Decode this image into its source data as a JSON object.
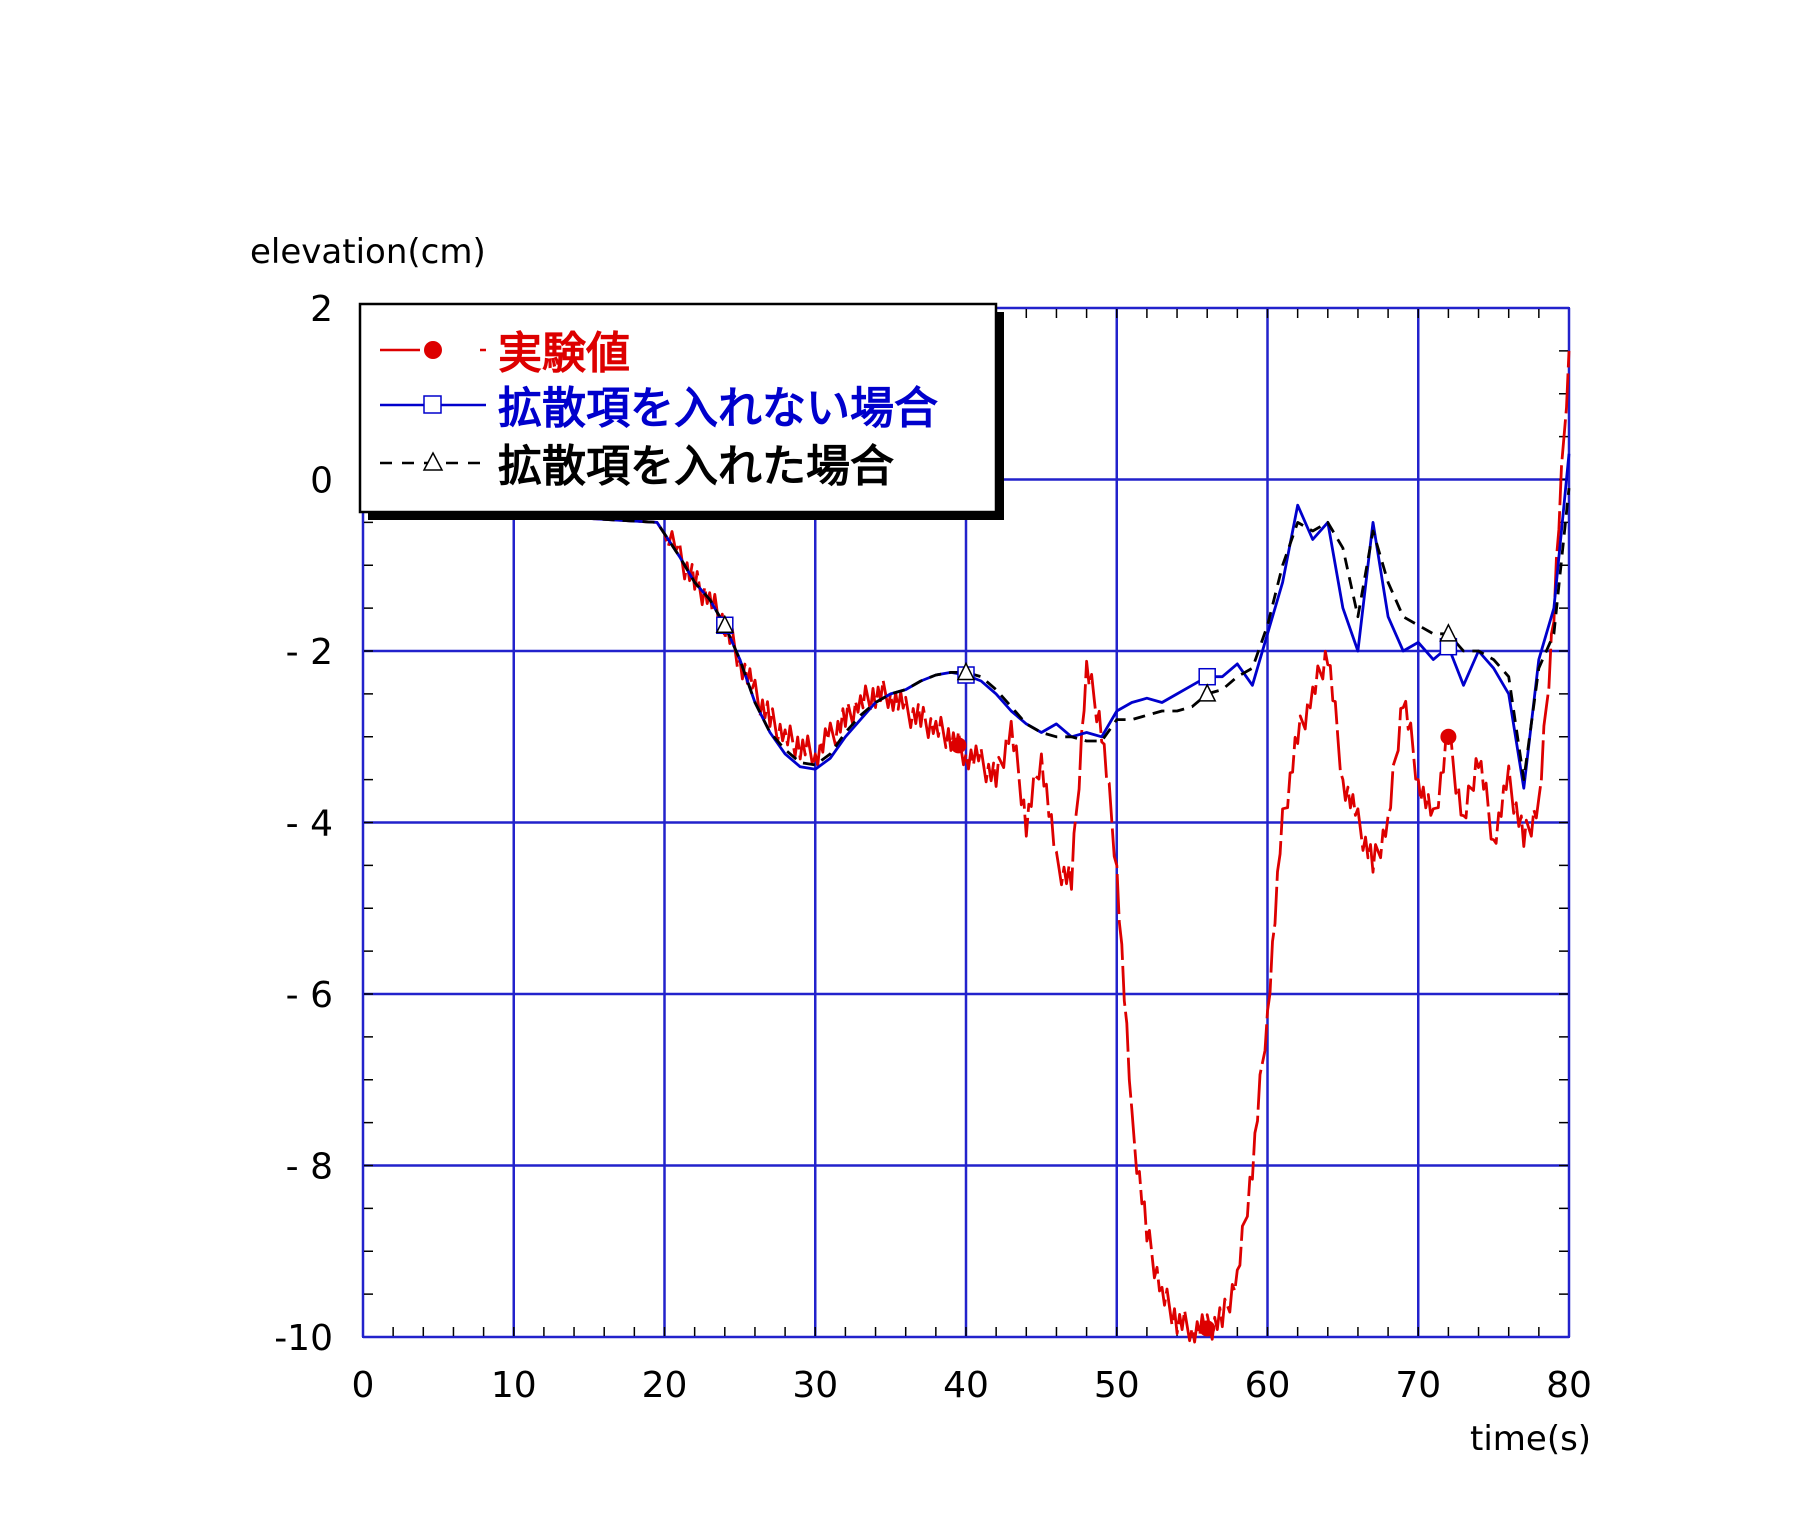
{
  "chart_data": {
    "type": "line",
    "xlabel": "time(s)",
    "ylabel": "elevation(cm)",
    "xlim": [
      0,
      80
    ],
    "ylim": [
      -10,
      2
    ],
    "x_ticks": [
      "0",
      "10",
      "20",
      "30",
      "40",
      "50",
      "60",
      "70",
      "80"
    ],
    "y_ticks": [
      "2",
      "0",
      "- 2",
      "- 4",
      "- 6",
      "- 8",
      "-10"
    ],
    "grid": true,
    "legend_position": "top-left",
    "colors": {
      "grid": "#2222cc",
      "experiment": "#dd0000",
      "no_diffusion": "#0000cc",
      "with_diffusion": "#000000"
    },
    "series": [
      {
        "name": "実験値",
        "style": "dashed-jagged",
        "marker": "filled-circle",
        "marker_x": [
          24,
          39.5,
          56,
          72
        ],
        "x": [
          0,
          19.5,
          21,
          22,
          23,
          24,
          25,
          26,
          27,
          28,
          29,
          30,
          31,
          32,
          33,
          34,
          35,
          36,
          37,
          38,
          39,
          40,
          41,
          42,
          43,
          44,
          45,
          46,
          47,
          48,
          49,
          50,
          51,
          52,
          53,
          54,
          55,
          56,
          57,
          58,
          59,
          60,
          61,
          62,
          63,
          64,
          65,
          66,
          67,
          68,
          69,
          70,
          71,
          72,
          73,
          74,
          75,
          76,
          77,
          78,
          79,
          80
        ],
        "y": [
          -0.3,
          -0.5,
          -0.9,
          -1.2,
          -1.4,
          -1.7,
          -2.1,
          -2.5,
          -2.8,
          -3.0,
          -3.1,
          -3.2,
          -3.0,
          -2.8,
          -2.6,
          -2.5,
          -2.5,
          -2.7,
          -2.8,
          -2.9,
          -3.0,
          -3.2,
          -3.3,
          -3.5,
          -2.9,
          -4.0,
          -3.2,
          -4.5,
          -4.7,
          -2.2,
          -2.9,
          -4.5,
          -7.5,
          -8.8,
          -9.5,
          -9.8,
          -9.9,
          -9.9,
          -9.8,
          -9.3,
          -8.0,
          -6.2,
          -4.0,
          -3.0,
          -2.5,
          -2.0,
          -3.5,
          -4.0,
          -4.5,
          -4.0,
          -2.5,
          -3.5,
          -4.0,
          -3.0,
          -4.0,
          -3.2,
          -4.2,
          -3.5,
          -4.2,
          -3.8,
          -1.5,
          1.5
        ]
      },
      {
        "name": "拡散項を入れない場合",
        "style": "solid",
        "marker": "open-square",
        "marker_x": [
          24,
          40,
          56,
          72
        ],
        "x": [
          0,
          19.5,
          21,
          22,
          23,
          24,
          25,
          26,
          27,
          28,
          29,
          30,
          31,
          32,
          33,
          34,
          35,
          36,
          37,
          38,
          39,
          40,
          41,
          42,
          43,
          44,
          45,
          46,
          47,
          48,
          49,
          50,
          51,
          52,
          53,
          54,
          55,
          56,
          57,
          58,
          59,
          60,
          61,
          62,
          63,
          64,
          65,
          66,
          67,
          68,
          69,
          70,
          71,
          72,
          73,
          74,
          75,
          76,
          77,
          78,
          79,
          80
        ],
        "y": [
          -0.3,
          -0.5,
          -0.9,
          -1.2,
          -1.4,
          -1.7,
          -2.1,
          -2.6,
          -2.95,
          -3.2,
          -3.35,
          -3.38,
          -3.25,
          -3.0,
          -2.8,
          -2.6,
          -2.5,
          -2.45,
          -2.35,
          -2.28,
          -2.25,
          -2.28,
          -2.35,
          -2.5,
          -2.7,
          -2.85,
          -2.95,
          -2.85,
          -3.0,
          -2.95,
          -3.0,
          -2.7,
          -2.6,
          -2.55,
          -2.6,
          -2.5,
          -2.4,
          -2.3,
          -2.3,
          -2.15,
          -2.4,
          -1.8,
          -1.2,
          -0.3,
          -0.7,
          -0.5,
          -1.5,
          -2.0,
          -0.5,
          -1.6,
          -2.0,
          -1.9,
          -2.1,
          -1.95,
          -2.4,
          -2.0,
          -2.2,
          -2.5,
          -3.6,
          -2.1,
          -1.5,
          0.3
        ]
      },
      {
        "name": "拡散項を入れた場合",
        "style": "dashed",
        "marker": "open-triangle",
        "marker_x": [
          24,
          40,
          56,
          72
        ],
        "x": [
          0,
          19.5,
          21,
          22,
          23,
          24,
          25,
          26,
          27,
          28,
          29,
          30,
          31,
          32,
          33,
          34,
          35,
          36,
          37,
          38,
          39,
          40,
          41,
          42,
          43,
          44,
          45,
          46,
          47,
          48,
          49,
          50,
          51,
          52,
          53,
          54,
          55,
          56,
          57,
          58,
          59,
          60,
          61,
          62,
          63,
          64,
          65,
          66,
          67,
          68,
          69,
          70,
          71,
          72,
          73,
          74,
          75,
          76,
          77,
          78,
          79,
          80
        ],
        "y": [
          -0.3,
          -0.5,
          -0.9,
          -1.2,
          -1.4,
          -1.7,
          -2.1,
          -2.6,
          -2.95,
          -3.15,
          -3.3,
          -3.33,
          -3.2,
          -2.95,
          -2.75,
          -2.6,
          -2.5,
          -2.45,
          -2.35,
          -2.28,
          -2.25,
          -2.25,
          -2.3,
          -2.45,
          -2.65,
          -2.85,
          -2.95,
          -3.0,
          -3.0,
          -3.05,
          -3.05,
          -2.8,
          -2.8,
          -2.75,
          -2.7,
          -2.7,
          -2.65,
          -2.5,
          -2.45,
          -2.3,
          -2.2,
          -1.7,
          -1.0,
          -0.5,
          -0.6,
          -0.5,
          -0.8,
          -1.6,
          -0.6,
          -1.2,
          -1.6,
          -1.7,
          -1.8,
          -1.8,
          -2.0,
          -2.0,
          -2.1,
          -2.3,
          -3.5,
          -2.2,
          -1.8,
          -0.1
        ]
      }
    ]
  }
}
